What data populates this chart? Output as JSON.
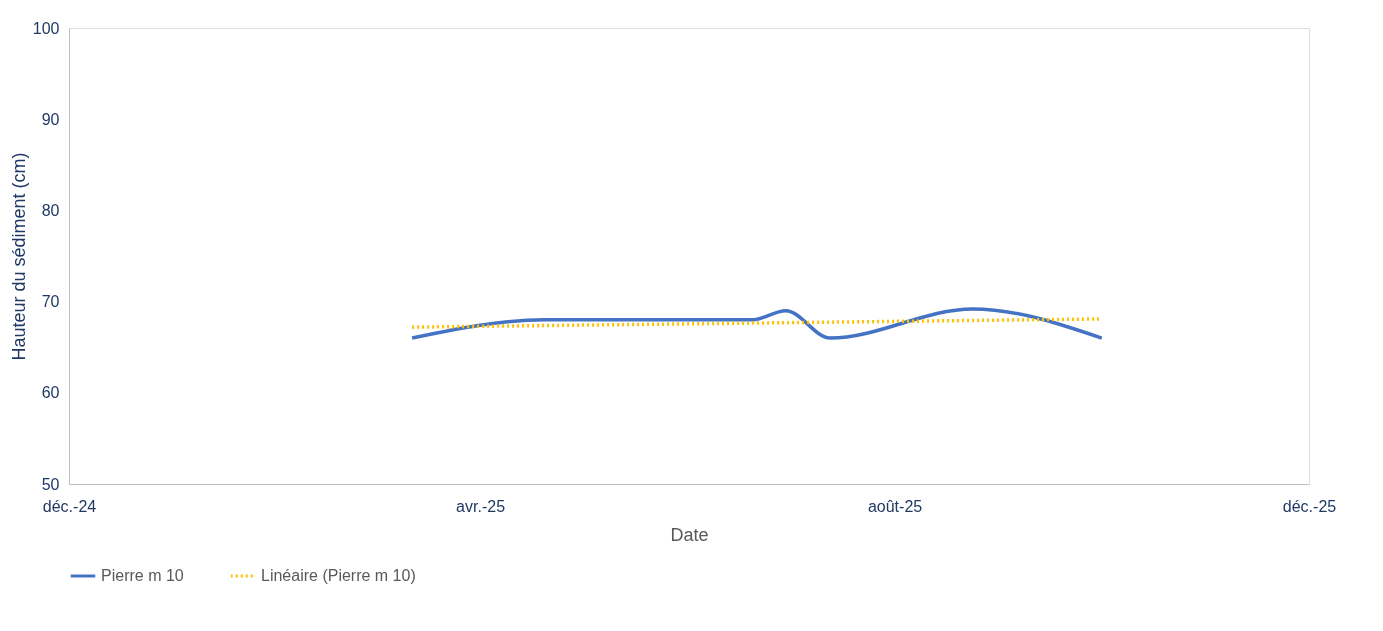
{
  "chart_data": {
    "type": "line",
    "xlabel": "Date",
    "ylabel": "Hauteur du sédiment (cm)",
    "xlim": [
      "2024-12-01",
      "2025-12-01"
    ],
    "xticks": [
      {
        "value": "2024-12-01",
        "label": "déc.-24"
      },
      {
        "value": "2025-04-01",
        "label": "avr.-25"
      },
      {
        "value": "2025-08-01",
        "label": "août-25"
      },
      {
        "value": "2025-12-01",
        "label": "déc.-25"
      }
    ],
    "ylim": [
      50,
      100
    ],
    "yticks": [
      50,
      60,
      70,
      80,
      90,
      100
    ],
    "grid": false,
    "legend": "bottom",
    "series": [
      {
        "name": "Pierre m 10",
        "color": "#4472c4",
        "line_style": "solid",
        "x": [
          "2025-03-12",
          "2025-04-20",
          "2025-06-20",
          "2025-06-30",
          "2025-07-13",
          "2025-08-24",
          "2025-10-01"
        ],
        "values": [
          66.0,
          68.0,
          68.0,
          69.0,
          66.0,
          69.2,
          66.0
        ]
      },
      {
        "name": "Linéaire (Pierre m 10)",
        "color": "#ffc000",
        "line_style": "dotted",
        "type": "line",
        "x": [
          "2025-03-12",
          "2025-10-01"
        ],
        "values": [
          67.2,
          68.1
        ]
      }
    ]
  }
}
